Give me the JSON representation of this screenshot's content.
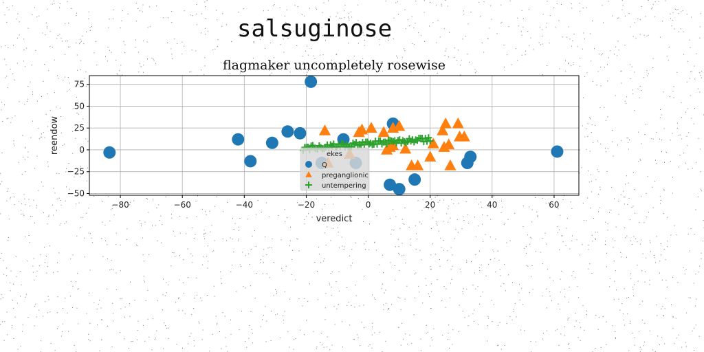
{
  "figure": {
    "supertitle": "salsuginose"
  },
  "chart_data": {
    "type": "scatter",
    "title": "flagmaker uncompletely rosewise",
    "xlabel": "veredict",
    "ylabel": "reendow",
    "xlim": [
      -90,
      68
    ],
    "ylim": [
      -52,
      85
    ],
    "xticks": [
      -80,
      -60,
      -40,
      -20,
      0,
      20,
      40,
      60
    ],
    "yticks": [
      -50,
      -25,
      0,
      25,
      50,
      75
    ],
    "grid": true,
    "legend": {
      "title": "ekes",
      "placement": "lower-center"
    },
    "series": [
      {
        "name": "Q",
        "marker": "circle",
        "color": "#1f77b4",
        "points": [
          [
            -83.5,
            -3
          ],
          [
            -42,
            12
          ],
          [
            -38,
            -13
          ],
          [
            -31,
            8
          ],
          [
            -26,
            21
          ],
          [
            -22,
            19
          ],
          [
            -18.5,
            78
          ],
          [
            -15,
            -15
          ],
          [
            -8,
            12
          ],
          [
            -4,
            -15
          ],
          [
            7,
            -40
          ],
          [
            8,
            30
          ],
          [
            10,
            -45
          ],
          [
            15,
            -34
          ],
          [
            32,
            -15
          ],
          [
            33,
            -8
          ],
          [
            61,
            -2
          ]
        ]
      },
      {
        "name": "preganglionic",
        "marker": "triangle",
        "color": "#ff7f0e",
        "points": [
          [
            -14,
            22
          ],
          [
            -13,
            -15
          ],
          [
            -6,
            -5
          ],
          [
            -3,
            20
          ],
          [
            -2,
            23
          ],
          [
            1,
            25
          ],
          [
            5,
            20
          ],
          [
            6,
            0
          ],
          [
            7,
            3
          ],
          [
            8,
            5
          ],
          [
            8,
            25
          ],
          [
            10,
            27
          ],
          [
            12,
            1
          ],
          [
            14,
            -18
          ],
          [
            16,
            -18
          ],
          [
            20,
            -8
          ],
          [
            21,
            7
          ],
          [
            24,
            22
          ],
          [
            24.5,
            3
          ],
          [
            25,
            30
          ],
          [
            26,
            6
          ],
          [
            26.5,
            -18
          ],
          [
            29,
            30
          ],
          [
            29.5,
            15
          ],
          [
            31,
            15
          ]
        ]
      },
      {
        "name": "untempering",
        "marker": "plus",
        "color": "#2ca02c",
        "x_range": [
          -21,
          20
        ],
        "y_range": [
          2,
          12
        ],
        "count": 80
      }
    ]
  },
  "colors": {
    "grid": "#b0b0b0",
    "axes": "#000000",
    "legend_bg": "#d9d9d9"
  }
}
